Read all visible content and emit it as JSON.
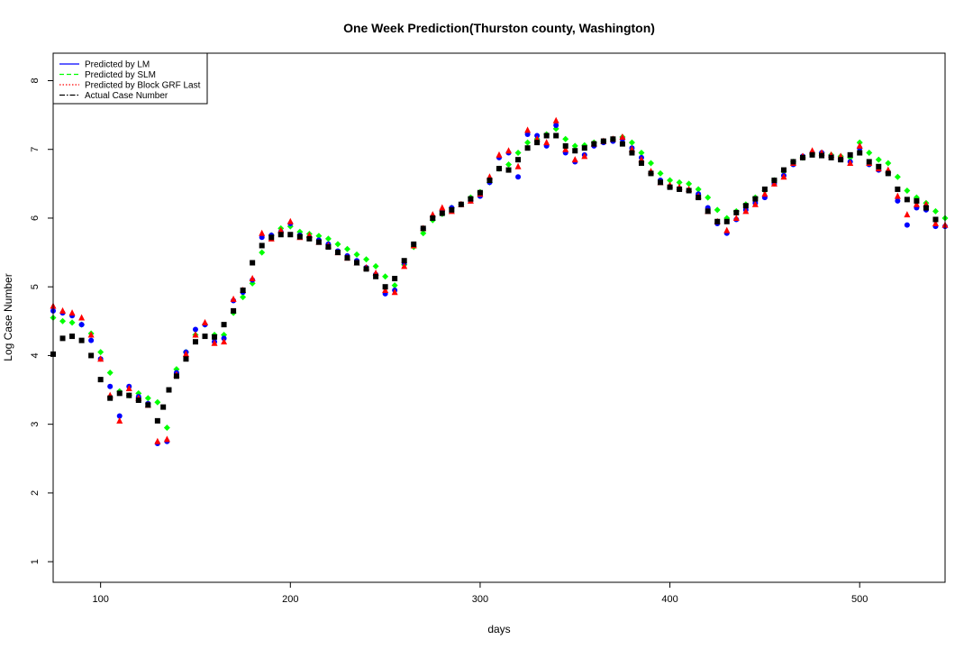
{
  "chart_data": {
    "type": "scatter",
    "title": "One Week Prediction(Thurston county, Washington)",
    "xlabel": "days",
    "ylabel": "Log Case Number",
    "xlim": [
      75,
      545
    ],
    "ylim": [
      0.7,
      8.4
    ],
    "x_ticks": [
      100,
      200,
      300,
      400,
      500
    ],
    "y_ticks": [
      1,
      2,
      3,
      4,
      5,
      6,
      7,
      8
    ],
    "grid": false,
    "legend_position": "top-left",
    "legend": [
      {
        "label": "Predicted by LM",
        "color": "#0000ff",
        "line": "solid"
      },
      {
        "label": "Predicted by SLM",
        "color": "#00ff00",
        "line": "dashed"
      },
      {
        "label": "Predicted by Block GRF Last",
        "color": "#ff0000",
        "line": "dotted"
      },
      {
        "label": "Actual Case Number",
        "color": "#000000",
        "line": "dashdot"
      }
    ],
    "series": [
      {
        "name": "Actual Case Number",
        "color": "#000000",
        "marker": "square",
        "x": [
          75,
          80,
          85,
          90,
          95,
          100,
          105,
          110,
          115,
          120,
          125,
          130,
          133,
          136,
          140,
          145,
          150,
          155,
          160,
          165,
          170,
          175,
          180,
          185,
          190,
          195,
          200,
          205,
          210,
          215,
          220,
          225,
          230,
          235,
          240,
          245,
          250,
          255,
          260,
          265,
          270,
          275,
          280,
          285,
          290,
          295,
          300,
          305,
          310,
          315,
          320,
          325,
          330,
          335,
          340,
          345,
          350,
          355,
          360,
          365,
          370,
          375,
          380,
          385,
          390,
          395,
          400,
          405,
          410,
          415,
          420,
          425,
          430,
          435,
          440,
          445,
          450,
          455,
          460,
          465,
          470,
          475,
          480,
          485,
          490,
          495,
          500,
          505,
          510,
          515,
          520,
          525,
          530,
          535,
          540
        ],
        "y": [
          4.02,
          4.25,
          4.28,
          4.22,
          4.0,
          3.65,
          3.38,
          3.45,
          3.42,
          3.35,
          3.28,
          3.05,
          3.25,
          3.5,
          3.7,
          3.95,
          4.2,
          4.28,
          4.27,
          4.45,
          4.65,
          4.95,
          5.35,
          5.6,
          5.72,
          5.76,
          5.76,
          5.73,
          5.7,
          5.65,
          5.58,
          5.5,
          5.42,
          5.35,
          5.26,
          5.15,
          5.0,
          5.12,
          5.38,
          5.62,
          5.85,
          6.0,
          6.07,
          6.12,
          6.2,
          6.28,
          6.37,
          6.55,
          6.72,
          6.7,
          6.85,
          7.02,
          7.1,
          7.2,
          7.2,
          7.05,
          6.98,
          7.02,
          7.08,
          7.12,
          7.15,
          7.08,
          6.95,
          6.8,
          6.65,
          6.52,
          6.45,
          6.42,
          6.4,
          6.3,
          6.1,
          5.95,
          5.95,
          6.08,
          6.18,
          6.28,
          6.42,
          6.55,
          6.7,
          6.82,
          6.88,
          6.92,
          6.91,
          6.88,
          6.85,
          6.92,
          6.95,
          6.82,
          6.75,
          6.65,
          6.42,
          6.27,
          6.25,
          6.15,
          5.98
        ]
      },
      {
        "name": "Predicted by SLM",
        "color": "#00ff00",
        "marker": "diamond",
        "x": [
          75,
          80,
          85,
          90,
          95,
          100,
          105,
          110,
          115,
          120,
          125,
          130,
          135,
          140,
          145,
          150,
          155,
          160,
          165,
          170,
          175,
          180,
          185,
          190,
          195,
          200,
          205,
          210,
          215,
          220,
          225,
          230,
          235,
          240,
          245,
          250,
          255,
          260,
          265,
          270,
          275,
          280,
          285,
          290,
          295,
          300,
          305,
          310,
          315,
          320,
          325,
          330,
          335,
          340,
          345,
          350,
          355,
          360,
          365,
          370,
          375,
          380,
          385,
          390,
          395,
          400,
          405,
          410,
          415,
          420,
          425,
          430,
          435,
          440,
          445,
          450,
          455,
          460,
          465,
          470,
          475,
          480,
          485,
          490,
          495,
          500,
          505,
          510,
          515,
          520,
          525,
          530,
          535,
          540,
          545
        ],
        "y": [
          4.55,
          4.5,
          4.48,
          4.45,
          4.32,
          4.05,
          3.75,
          3.48,
          3.42,
          3.45,
          3.38,
          3.32,
          2.95,
          3.8,
          4.05,
          4.3,
          4.45,
          4.3,
          4.3,
          4.62,
          4.85,
          5.05,
          5.5,
          5.75,
          5.85,
          5.88,
          5.8,
          5.77,
          5.74,
          5.7,
          5.62,
          5.55,
          5.47,
          5.4,
          5.3,
          5.15,
          5.02,
          5.32,
          5.58,
          5.78,
          5.97,
          6.06,
          6.15,
          6.2,
          6.3,
          6.38,
          6.52,
          6.72,
          6.78,
          6.95,
          7.1,
          7.15,
          7.22,
          7.3,
          7.15,
          7.05,
          7.06,
          7.1,
          7.12,
          7.15,
          7.18,
          7.1,
          6.95,
          6.8,
          6.65,
          6.55,
          6.52,
          6.5,
          6.42,
          6.3,
          6.12,
          6.0,
          6.1,
          6.2,
          6.3,
          6.4,
          6.55,
          6.68,
          6.82,
          6.88,
          6.93,
          6.95,
          6.92,
          6.9,
          6.88,
          7.1,
          6.95,
          6.85,
          6.8,
          6.6,
          6.4,
          6.3,
          6.22,
          6.1,
          6.0
        ]
      },
      {
        "name": "Predicted by LM",
        "color": "#0000ff",
        "marker": "circle",
        "x": [
          75,
          80,
          85,
          90,
          95,
          100,
          105,
          110,
          115,
          120,
          125,
          130,
          135,
          140,
          145,
          150,
          155,
          160,
          165,
          170,
          175,
          180,
          185,
          190,
          195,
          200,
          205,
          210,
          215,
          220,
          225,
          230,
          235,
          240,
          245,
          250,
          255,
          260,
          265,
          270,
          275,
          280,
          285,
          290,
          295,
          300,
          305,
          310,
          315,
          320,
          325,
          330,
          335,
          340,
          345,
          350,
          355,
          360,
          365,
          370,
          375,
          380,
          385,
          390,
          395,
          400,
          405,
          410,
          415,
          420,
          425,
          430,
          435,
          440,
          445,
          450,
          455,
          460,
          465,
          470,
          475,
          480,
          485,
          490,
          495,
          500,
          505,
          510,
          515,
          520,
          525,
          530,
          535,
          540,
          545
        ],
        "y": [
          4.65,
          4.62,
          4.58,
          4.45,
          4.22,
          3.95,
          3.55,
          3.12,
          3.55,
          3.4,
          3.3,
          2.72,
          2.75,
          3.75,
          4.05,
          4.38,
          4.45,
          4.2,
          4.25,
          4.8,
          4.92,
          5.1,
          5.72,
          5.75,
          5.8,
          5.92,
          5.75,
          5.72,
          5.68,
          5.62,
          5.52,
          5.45,
          5.38,
          5.28,
          5.18,
          4.9,
          4.95,
          5.35,
          5.62,
          5.85,
          6.02,
          6.1,
          6.15,
          6.2,
          6.25,
          6.32,
          6.52,
          6.88,
          6.95,
          6.6,
          7.22,
          7.2,
          7.05,
          7.35,
          6.95,
          6.82,
          6.92,
          7.05,
          7.1,
          7.12,
          7.15,
          7.02,
          6.88,
          6.65,
          6.55,
          6.45,
          6.42,
          6.4,
          6.35,
          6.15,
          5.92,
          5.78,
          5.98,
          6.12,
          6.22,
          6.3,
          6.5,
          6.62,
          6.78,
          6.9,
          6.95,
          6.95,
          6.9,
          6.85,
          6.82,
          7.02,
          6.78,
          6.7,
          6.65,
          6.25,
          5.9,
          6.15,
          6.12,
          5.88,
          5.88
        ]
      },
      {
        "name": "Predicted by Block GRF Last",
        "color": "#ff0000",
        "marker": "triangle",
        "x": [
          75,
          80,
          85,
          90,
          95,
          100,
          105,
          110,
          115,
          120,
          125,
          130,
          135,
          140,
          145,
          150,
          155,
          160,
          165,
          170,
          175,
          180,
          185,
          190,
          195,
          200,
          205,
          210,
          215,
          220,
          225,
          230,
          235,
          240,
          245,
          250,
          255,
          260,
          265,
          270,
          275,
          280,
          285,
          290,
          295,
          300,
          305,
          310,
          315,
          320,
          325,
          330,
          335,
          340,
          345,
          350,
          355,
          360,
          365,
          370,
          375,
          380,
          385,
          390,
          395,
          400,
          405,
          410,
          415,
          420,
          425,
          430,
          435,
          440,
          445,
          450,
          455,
          460,
          465,
          470,
          475,
          480,
          485,
          490,
          495,
          500,
          505,
          510,
          515,
          520,
          525,
          530,
          535,
          540,
          545
        ],
        "y": [
          4.72,
          4.65,
          4.62,
          4.55,
          4.3,
          3.95,
          3.42,
          3.05,
          3.52,
          3.38,
          3.28,
          2.75,
          2.78,
          3.72,
          4.02,
          4.3,
          4.48,
          4.18,
          4.2,
          4.82,
          4.95,
          5.12,
          5.78,
          5.7,
          5.82,
          5.95,
          5.72,
          5.75,
          5.65,
          5.6,
          5.5,
          5.42,
          5.35,
          5.28,
          5.2,
          4.95,
          4.92,
          5.3,
          5.6,
          5.85,
          6.05,
          6.15,
          6.1,
          6.2,
          6.25,
          6.35,
          6.6,
          6.92,
          6.98,
          6.75,
          7.28,
          7.15,
          7.1,
          7.42,
          7.0,
          6.85,
          6.9,
          7.08,
          7.12,
          7.15,
          7.18,
          7.0,
          6.85,
          6.68,
          6.52,
          6.48,
          6.45,
          6.42,
          6.32,
          6.1,
          5.95,
          5.82,
          6.0,
          6.1,
          6.2,
          6.35,
          6.5,
          6.6,
          6.8,
          6.9,
          6.98,
          6.95,
          6.92,
          6.9,
          6.8,
          7.05,
          6.8,
          6.72,
          6.7,
          6.32,
          6.05,
          6.2,
          6.2,
          5.92,
          5.9
        ]
      }
    ]
  }
}
